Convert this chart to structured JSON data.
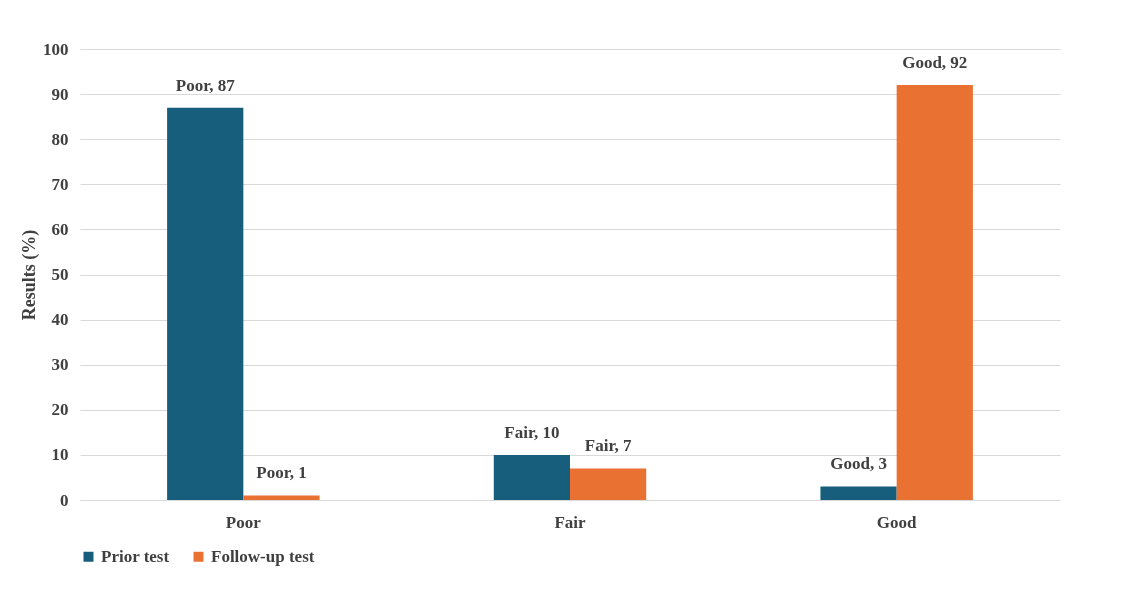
{
  "chart_data": {
    "type": "bar",
    "ylabel": "Results (%)",
    "categories": [
      "Poor",
      "Fair",
      "Good"
    ],
    "series": [
      {
        "name": "Prior test",
        "color": "#175e7c",
        "values": [
          87,
          10,
          3
        ],
        "value_labels": [
          "Poor, 87",
          "Fair, 10",
          "Good, 3"
        ]
      },
      {
        "name": "Follow-up test",
        "color": "#e97132",
        "values": [
          1,
          7,
          92
        ],
        "value_labels": [
          "Poor, 1",
          "Fair, 7",
          "Good, 92"
        ]
      }
    ],
    "ylim": [
      0,
      100
    ],
    "yticks": [
      0,
      10,
      20,
      30,
      40,
      50,
      60,
      70,
      80,
      90,
      100
    ],
    "grid": "y",
    "legend": "bottom"
  }
}
